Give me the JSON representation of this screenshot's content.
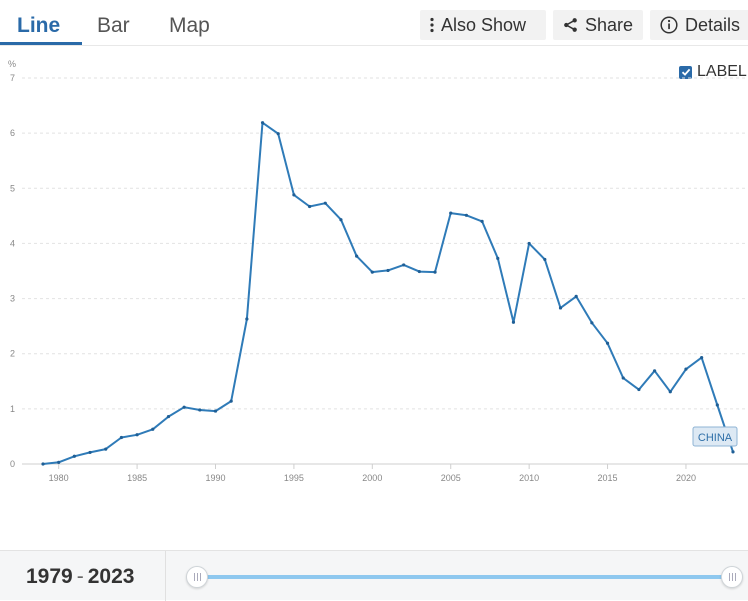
{
  "tabs": [
    {
      "label": "Line",
      "active": true
    },
    {
      "label": "Bar",
      "active": false
    },
    {
      "label": "Map",
      "active": false
    }
  ],
  "toolbar": {
    "also_show_label": "Also Show",
    "share_label": "Share",
    "details_label": "Details"
  },
  "label_toggle": {
    "label": "LABEL",
    "checked": true
  },
  "range": {
    "start": "1979",
    "end": "2023",
    "separator": "-"
  },
  "colors": {
    "accent": "#2a6aa8",
    "line": "#2f7bb8",
    "slider": "#8ec8ef"
  },
  "chart_data": {
    "type": "line",
    "y_unit": "%",
    "ylim": [
      0,
      7
    ],
    "xlim": [
      1979,
      2023
    ],
    "y_ticks": [
      "0",
      "1",
      "2",
      "3",
      "4",
      "5",
      "6",
      "7"
    ],
    "x_ticks": [
      "1980",
      "1985",
      "1990",
      "1995",
      "2000",
      "2005",
      "2010",
      "2015",
      "2020"
    ],
    "grid": "horizontal dashed",
    "series": [
      {
        "name": "CHINA",
        "x": [
          1979,
          1980,
          1981,
          1982,
          1983,
          1984,
          1985,
          1986,
          1987,
          1988,
          1989,
          1990,
          1991,
          1992,
          1993,
          1994,
          1995,
          1996,
          1997,
          1998,
          1999,
          2000,
          2001,
          2002,
          2003,
          2004,
          2005,
          2006,
          2007,
          2008,
          2009,
          2010,
          2011,
          2012,
          2013,
          2014,
          2015,
          2016,
          2017,
          2018,
          2019,
          2020,
          2021,
          2022,
          2023
        ],
        "y": [
          0.0,
          0.03,
          0.14,
          0.21,
          0.27,
          0.48,
          0.53,
          0.63,
          0.86,
          1.03,
          0.98,
          0.96,
          1.14,
          2.63,
          6.19,
          5.99,
          4.88,
          4.67,
          4.73,
          4.43,
          3.77,
          3.48,
          3.51,
          3.61,
          3.49,
          3.48,
          4.55,
          4.51,
          4.4,
          3.73,
          2.57,
          4.0,
          3.71,
          2.83,
          3.04,
          2.56,
          2.19,
          1.56,
          1.35,
          1.69,
          1.31,
          1.72,
          1.93,
          1.07,
          0.22
        ]
      }
    ]
  }
}
